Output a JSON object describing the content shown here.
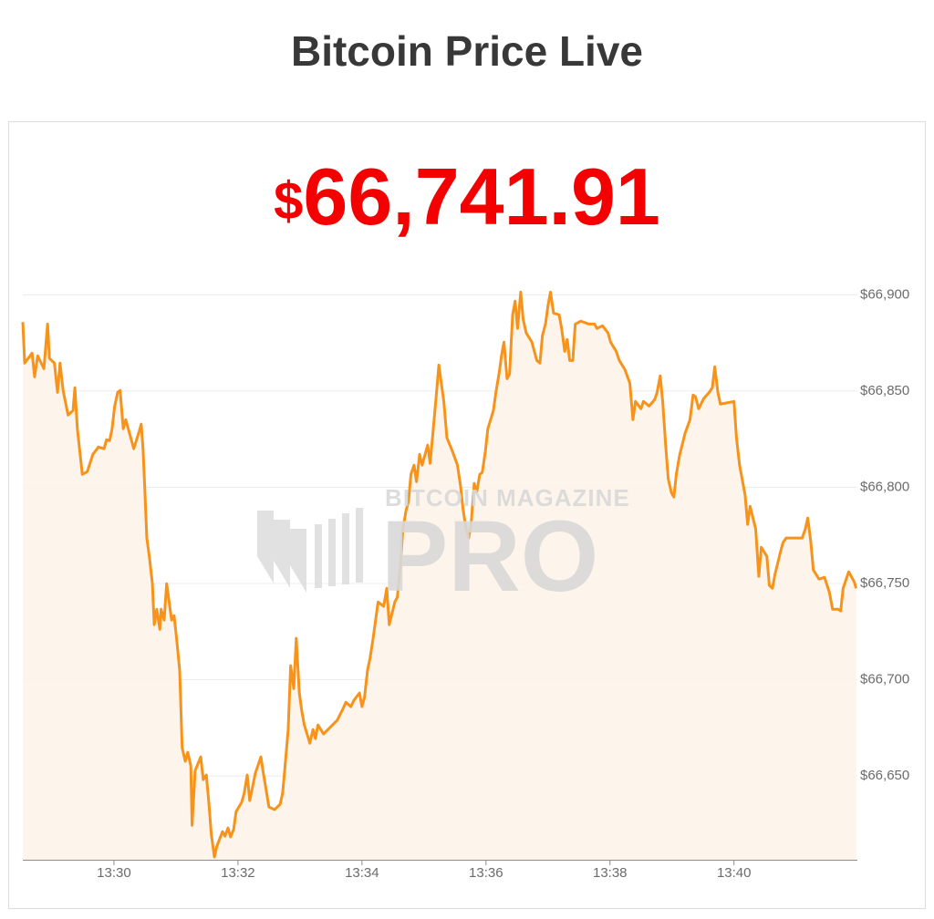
{
  "header": {
    "title": "Bitcoin Price Live"
  },
  "price": {
    "currency": "$",
    "amount": "66,741.91"
  },
  "watermark": {
    "top": "BITCOIN MAGAZINE",
    "main": "PRO"
  },
  "chart_data": {
    "type": "line",
    "line_color": "#f7931a",
    "fill_color": "#fdf3e7",
    "grid": true,
    "xlim": [
      808.53,
      821.99
    ],
    "ylim": [
      66606,
      66912
    ],
    "xticks": [
      {
        "value": 810,
        "label": "13:30"
      },
      {
        "value": 812,
        "label": "13:32"
      },
      {
        "value": 814,
        "label": "13:34"
      },
      {
        "value": 816,
        "label": "13:36"
      },
      {
        "value": 818,
        "label": "13:38"
      },
      {
        "value": 820,
        "label": "13:40"
      }
    ],
    "yticks": [
      {
        "value": 66650,
        "label": "$66,650"
      },
      {
        "value": 66700,
        "label": "$66,700"
      },
      {
        "value": 66750,
        "label": "$66,750"
      },
      {
        "value": 66800,
        "label": "$66,800"
      },
      {
        "value": 66850,
        "label": "$66,850"
      },
      {
        "value": 66900,
        "label": "$66,900"
      }
    ],
    "x": [
      808.53,
      808.56,
      808.68,
      808.72,
      808.77,
      808.87,
      808.93,
      808.96,
      809.04,
      809.09,
      809.13,
      809.18,
      809.26,
      809.34,
      809.37,
      809.41,
      809.49,
      809.57,
      809.66,
      809.75,
      809.84,
      809.88,
      809.93,
      809.97,
      810.01,
      810.06,
      810.1,
      810.15,
      810.19,
      810.28,
      810.32,
      810.41,
      810.44,
      810.47,
      810.5,
      810.53,
      810.57,
      810.62,
      810.65,
      810.69,
      810.74,
      810.76,
      810.81,
      810.85,
      810.93,
      810.97,
      811.01,
      811.06,
      811.1,
      811.15,
      811.19,
      811.24,
      811.26,
      811.31,
      811.4,
      811.44,
      811.49,
      811.53,
      811.57,
      811.62,
      811.66,
      811.75,
      811.79,
      811.84,
      811.88,
      811.93,
      811.97,
      812.06,
      812.1,
      812.15,
      812.19,
      812.28,
      812.37,
      812.41,
      812.5,
      812.59,
      812.68,
      812.72,
      812.76,
      812.81,
      812.85,
      812.9,
      812.94,
      812.99,
      813.03,
      813.07,
      813.16,
      813.21,
      813.25,
      813.29,
      813.38,
      813.51,
      813.6,
      813.69,
      813.74,
      813.82,
      813.87,
      813.96,
      814.0,
      814.04,
      814.09,
      814.13,
      814.18,
      814.22,
      814.26,
      814.35,
      814.4,
      814.44,
      814.53,
      814.57,
      814.62,
      814.66,
      814.71,
      814.75,
      814.79,
      814.84,
      814.88,
      814.93,
      814.97,
      815.06,
      815.1,
      815.15,
      815.19,
      815.24,
      815.28,
      815.32,
      815.37,
      815.46,
      815.54,
      815.59,
      815.63,
      815.68,
      815.72,
      815.76,
      815.81,
      815.85,
      815.9,
      815.94,
      815.99,
      816.03,
      816.12,
      816.16,
      816.21,
      816.25,
      816.29,
      816.34,
      816.38,
      816.43,
      816.47,
      816.51,
      816.56,
      816.6,
      816.65,
      816.74,
      816.82,
      816.87,
      816.91,
      816.96,
      817.0,
      817.04,
      817.09,
      817.18,
      817.22,
      817.27,
      817.31,
      817.35,
      817.4,
      817.44,
      817.53,
      817.66,
      817.75,
      817.79,
      817.88,
      817.97,
      818.01,
      818.1,
      818.15,
      818.24,
      818.32,
      818.37,
      818.41,
      818.5,
      818.54,
      818.63,
      818.72,
      818.76,
      818.81,
      818.85,
      818.9,
      818.94,
      818.99,
      819.03,
      819.07,
      819.12,
      819.21,
      819.29,
      819.34,
      819.38,
      819.43,
      819.51,
      819.6,
      819.65,
      819.69,
      819.74,
      819.78,
      820.0,
      820.04,
      820.09,
      820.18,
      820.22,
      820.26,
      820.35,
      820.4,
      820.44,
      820.53,
      820.57,
      820.62,
      820.66,
      820.75,
      820.79,
      820.84,
      820.93,
      821.01,
      821.1,
      821.15,
      821.19,
      821.24,
      821.28,
      821.37,
      821.46,
      821.54,
      821.59,
      821.68,
      821.72,
      821.76,
      821.85,
      821.94,
      821.97
    ],
    "values": [
      66885.8,
      66864.5,
      66869.7,
      66857.4,
      66868.3,
      66861.6,
      66884.8,
      66866.9,
      66864.5,
      66849.3,
      66864.5,
      66850.3,
      66837.5,
      66839.9,
      66851.7,
      66830.4,
      66806.7,
      66808.1,
      66817.1,
      66820.9,
      66820.0,
      66824.7,
      66824.2,
      66830.4,
      66841.8,
      66849.3,
      66850.3,
      66830.4,
      66835.1,
      66824.7,
      66820.0,
      66829.4,
      66832.8,
      66819.5,
      66797.3,
      66773.6,
      66764.1,
      66749.9,
      66728.6,
      66736.6,
      66726.2,
      66736.6,
      66731.0,
      66749.9,
      66731.0,
      66733.3,
      66721.5,
      66704.9,
      66664.7,
      66657.6,
      66662.3,
      66655.2,
      66624.4,
      66652.8,
      66659.9,
      66648.1,
      66650.5,
      66636.3,
      66619.7,
      66607.9,
      66613.5,
      66621.1,
      66618.7,
      66623.0,
      66618.3,
      66622.1,
      66631.5,
      66636.3,
      66641.0,
      66650.5,
      66637.2,
      66651.4,
      66659.9,
      66651.4,
      66633.9,
      66632.5,
      66635.3,
      66641.0,
      66655.2,
      66674.1,
      66707.3,
      66695.4,
      66721.5,
      66693.1,
      66683.6,
      66676.5,
      66667.0,
      66674.1,
      66669.4,
      66676.5,
      66671.8,
      66676.0,
      66678.9,
      66684.6,
      66688.3,
      66686.0,
      66689.3,
      66693.1,
      66686.0,
      66690.7,
      66704.9,
      66711.1,
      66721.5,
      66731.0,
      66740.4,
      66738.1,
      66747.5,
      66728.6,
      66740.4,
      66742.8,
      66759.4,
      66778.3,
      66787.8,
      66792.5,
      66806.7,
      66811.5,
      66802.9,
      66817.1,
      66811.5,
      66821.9,
      66812.4,
      66830.4,
      66844.6,
      66863.5,
      66854.1,
      66844.6,
      66825.7,
      66818.6,
      66811.5,
      66800.6,
      66788.7,
      66778.3,
      66773.6,
      66780.7,
      66802.0,
      66797.3,
      66806.7,
      66807.7,
      66818.6,
      66830.4,
      66839.9,
      66849.3,
      66858.8,
      66868.3,
      66875.4,
      66856.4,
      66858.8,
      66889.6,
      66896.7,
      66882.5,
      66901.4,
      66887.2,
      66880.1,
      66875.4,
      66865.9,
      66864.5,
      66878.7,
      66884.8,
      66894.3,
      66901.4,
      66890.5,
      66889.6,
      66882.5,
      66870.6,
      66876.8,
      66865.9,
      66865.9,
      66884.8,
      66886.3,
      66884.8,
      66884.8,
      66882.5,
      66883.9,
      66880.1,
      66875.4,
      66870.6,
      66865.9,
      66861.2,
      66854.1,
      66835.1,
      66844.6,
      66840.8,
      66844.6,
      66842.2,
      66845.5,
      66849.3,
      66857.9,
      66844.6,
      66820.9,
      66804.4,
      66797.3,
      66794.9,
      66806.7,
      66816.2,
      66828.0,
      66835.1,
      66847.9,
      66847.0,
      66840.8,
      66846.0,
      66849.3,
      66851.7,
      66862.6,
      66849.3,
      66843.2,
      66844.6,
      66825.7,
      66811.5,
      66795.8,
      66780.7,
      66790.1,
      66778.3,
      66753.7,
      66768.8,
      66764.1,
      66749.0,
      66747.5,
      66754.6,
      66766.5,
      66771.2,
      66773.6,
      66773.6,
      66773.6,
      66773.6,
      66778.3,
      66784.0,
      66771.2,
      66757.0,
      66752.3,
      66753.2,
      66745.2,
      66736.6,
      66736.6,
      66735.7,
      66747.5,
      66756.1,
      66750.8,
      66747.5
    ]
  }
}
